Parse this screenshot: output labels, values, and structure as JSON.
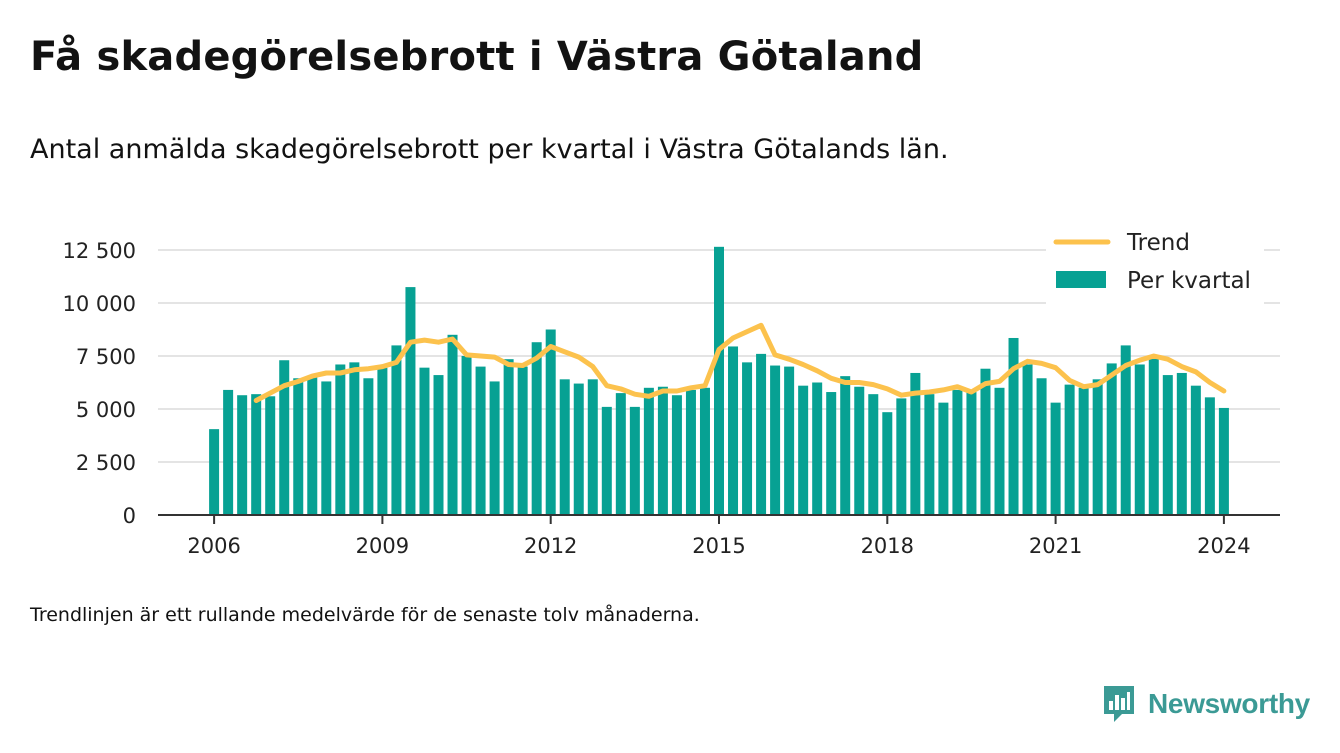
{
  "title": "Få skadegörelsebrott i Västra Götaland",
  "subtitle": "Antal anmälda skadegörelsebrott per kvartal i Västra Götalands län.",
  "footnote": "Trendlinjen är ett rullande medelvärde för de senaste tolv månaderna.",
  "brand": {
    "name": "Newsworthy",
    "icon": "newsworthy-logo-icon",
    "color": "#3b9a95"
  },
  "chart_data": {
    "type": "bar",
    "x_start": 2006.0,
    "x_step": 0.25,
    "xlim": [
      2005.0,
      2025.0
    ],
    "ylim": [
      0,
      12500
    ],
    "y_ticks": [
      0,
      2500,
      5000,
      7500,
      10000,
      12500
    ],
    "y_tick_labels": [
      "0",
      "2 500",
      "5 000",
      "7 500",
      "10 000",
      "12 500"
    ],
    "x_ticks": [
      2006,
      2009,
      2012,
      2015,
      2018,
      2021,
      2024
    ],
    "x_tick_labels": [
      "2006",
      "2009",
      "2012",
      "2015",
      "2018",
      "2021",
      "2024"
    ],
    "grid": "horizontal",
    "legend_position": "top-right",
    "colors": {
      "bars": "#07a193",
      "trend": "#fcc24d",
      "grid": "#dcdcdc",
      "axis": "#333333"
    },
    "series": [
      {
        "name": "Per kvartal",
        "kind": "bar",
        "values": [
          4050,
          5900,
          5650,
          5700,
          5600,
          7300,
          6450,
          6550,
          6300,
          7100,
          7200,
          6450,
          6950,
          8000,
          10750,
          6950,
          6600,
          8500,
          7500,
          7000,
          6300,
          7350,
          7000,
          8150,
          8750,
          6400,
          6200,
          6400,
          5100,
          5750,
          5100,
          6000,
          6050,
          5650,
          5900,
          6000,
          12650,
          7950,
          7200,
          7600,
          7050,
          7000,
          6100,
          6250,
          5800,
          6550,
          6050,
          5700,
          4850,
          5500,
          6700,
          5700,
          5300,
          5900,
          5800,
          6900,
          6000,
          8350,
          7100,
          6450,
          5300,
          6150,
          6000,
          6400,
          7150,
          8000,
          7100,
          7400,
          6600,
          6700,
          6100,
          5550,
          5050
        ]
      },
      {
        "name": "Trend",
        "kind": "line",
        "x_start": 2006.75,
        "values": [
          5400,
          5750,
          6100,
          6300,
          6550,
          6700,
          6700,
          6850,
          6900,
          7000,
          7200,
          8150,
          8250,
          8150,
          8300,
          7550,
          7500,
          7450,
          7100,
          7050,
          7400,
          7950,
          7700,
          7450,
          7000,
          6100,
          5950,
          5700,
          5600,
          5850,
          5850,
          6000,
          6100,
          7800,
          8350,
          8650,
          8950,
          7550,
          7350,
          7100,
          6800,
          6450,
          6250,
          6250,
          6150,
          5950,
          5650,
          5750,
          5800,
          5900,
          6050,
          5800,
          6200,
          6300,
          6900,
          7250,
          7150,
          6950,
          6350,
          6050,
          6150,
          6600,
          7050,
          7300,
          7500,
          7350,
          7000,
          6750,
          6250,
          5850
        ]
      }
    ]
  }
}
